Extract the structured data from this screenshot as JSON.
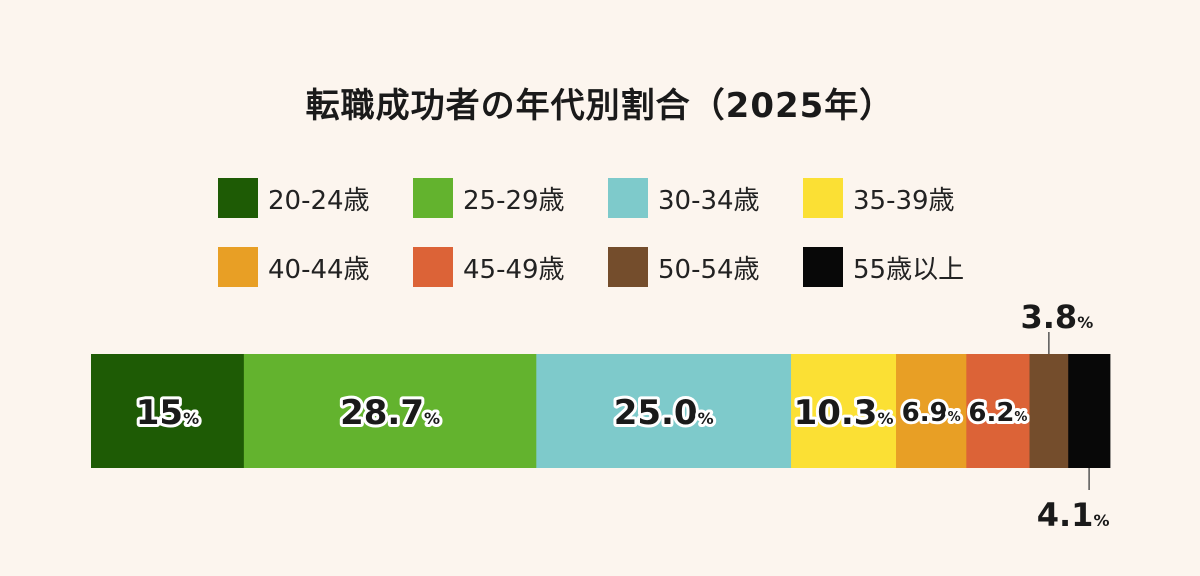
{
  "chart_data": {
    "type": "bar",
    "subtype": "100-percent-stacked-horizontal",
    "title": "転職成功者の年代別割合（2025年）",
    "unit": "%",
    "legend_placement": "top",
    "categories": [
      "20-24歳",
      "25-29歳",
      "30-34歳",
      "35-39歳",
      "40-44歳",
      "45-49歳",
      "50-54歳",
      "55歳以上"
    ],
    "values": [
      15,
      28.7,
      25.0,
      10.3,
      6.9,
      6.2,
      3.8,
      4.1
    ],
    "value_labels": [
      "15",
      "28.7",
      "25.0",
      "10.3",
      "6.9",
      "6.2",
      "3.8",
      "4.1"
    ],
    "colors": [
      "#1e5b05",
      "#63b32e",
      "#7ecacb",
      "#fbe034",
      "#e89f25",
      "#dc6337",
      "#744d2c",
      "#080808"
    ],
    "label_placement": [
      "inside",
      "inside",
      "inside",
      "inside",
      "inside",
      "inside",
      "above",
      "below"
    ]
  }
}
